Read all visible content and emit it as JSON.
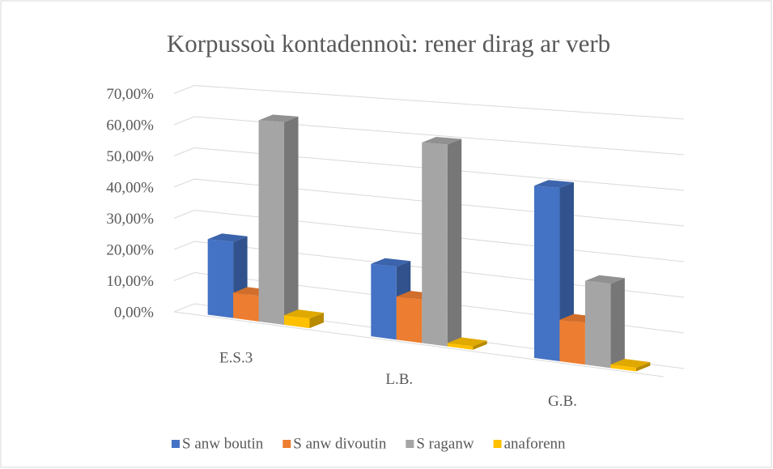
{
  "chart_data": {
    "type": "bar3d",
    "title": "Korpussoù kontadennoù: rener dirag ar verb",
    "categories": [
      "E.S.3",
      "L.B.",
      "G.B."
    ],
    "series": [
      {
        "name": "S anw boutin",
        "color": "#4472c4",
        "values": [
          24,
          22,
          50
        ]
      },
      {
        "name": "S anw divoutin",
        "color": "#ed7d31",
        "values": [
          8,
          13,
          12
        ]
      },
      {
        "name": "S raganw",
        "color": "#a5a5a5",
        "values": [
          63,
          60,
          24
        ]
      },
      {
        "name": "anaforenn",
        "color": "#ffc000",
        "values": [
          3,
          1,
          1
        ]
      }
    ],
    "ylim": [
      0,
      70
    ],
    "yticks": [
      {
        "value": 0,
        "label": "0,00%"
      },
      {
        "value": 10,
        "label": "10,00%"
      },
      {
        "value": 20,
        "label": "20,00%"
      },
      {
        "value": 30,
        "label": "30,00%"
      },
      {
        "value": 40,
        "label": "40,00%"
      },
      {
        "value": 50,
        "label": "50,00%"
      },
      {
        "value": 60,
        "label": "60,00%"
      },
      {
        "value": 70,
        "label": "70,00%"
      }
    ],
    "grid": true,
    "legend": "bottom"
  }
}
